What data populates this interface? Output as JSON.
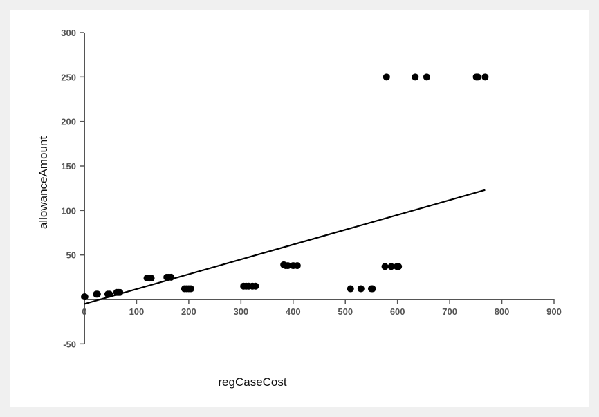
{
  "colors": {
    "background": "#f0f0f0",
    "panel": "#ffffff",
    "axis": "#555555",
    "points": "#000000",
    "trend": "#000000"
  },
  "chart_data": {
    "type": "scatter",
    "title": "",
    "xlabel": "regCaseCost",
    "ylabel": "allowanceAmount",
    "xlim": [
      0,
      900
    ],
    "ylim": [
      -50,
      300
    ],
    "x_ticks": [
      "0",
      "100",
      "200",
      "300",
      "400",
      "500",
      "600",
      "700",
      "800",
      "900"
    ],
    "y_ticks": [
      "-50",
      "50",
      "100",
      "150",
      "200",
      "250",
      "300"
    ],
    "y_tick_values": [
      -50,
      50,
      100,
      150,
      200,
      250,
      300
    ],
    "grid": false,
    "series": [
      {
        "points": [
          [
            0,
            3
          ],
          [
            1,
            3
          ],
          [
            23,
            6
          ],
          [
            25,
            6
          ],
          [
            45,
            6
          ],
          [
            48,
            6
          ],
          [
            62,
            8
          ],
          [
            65,
            8
          ],
          [
            68,
            8
          ],
          [
            120,
            24
          ],
          [
            125,
            24
          ],
          [
            128,
            24
          ],
          [
            158,
            25
          ],
          [
            162,
            25
          ],
          [
            166,
            25
          ],
          [
            192,
            12
          ],
          [
            196,
            12
          ],
          [
            200,
            12
          ],
          [
            204,
            12
          ],
          [
            305,
            15
          ],
          [
            310,
            15
          ],
          [
            315,
            15
          ],
          [
            322,
            15
          ],
          [
            328,
            15
          ],
          [
            382,
            39
          ],
          [
            386,
            38
          ],
          [
            390,
            38
          ],
          [
            400,
            38
          ],
          [
            408,
            38
          ],
          [
            510,
            12
          ],
          [
            530,
            12
          ],
          [
            550,
            12
          ],
          [
            552,
            12
          ],
          [
            576,
            37
          ],
          [
            588,
            37
          ],
          [
            599,
            37
          ],
          [
            602,
            37
          ],
          [
            579,
            250
          ],
          [
            634,
            250
          ],
          [
            656,
            250
          ],
          [
            751,
            250
          ],
          [
            754,
            250
          ],
          [
            768,
            250
          ]
        ]
      }
    ],
    "trendline": {
      "x": [
        0,
        768
      ],
      "y": [
        -5,
        123
      ]
    }
  }
}
